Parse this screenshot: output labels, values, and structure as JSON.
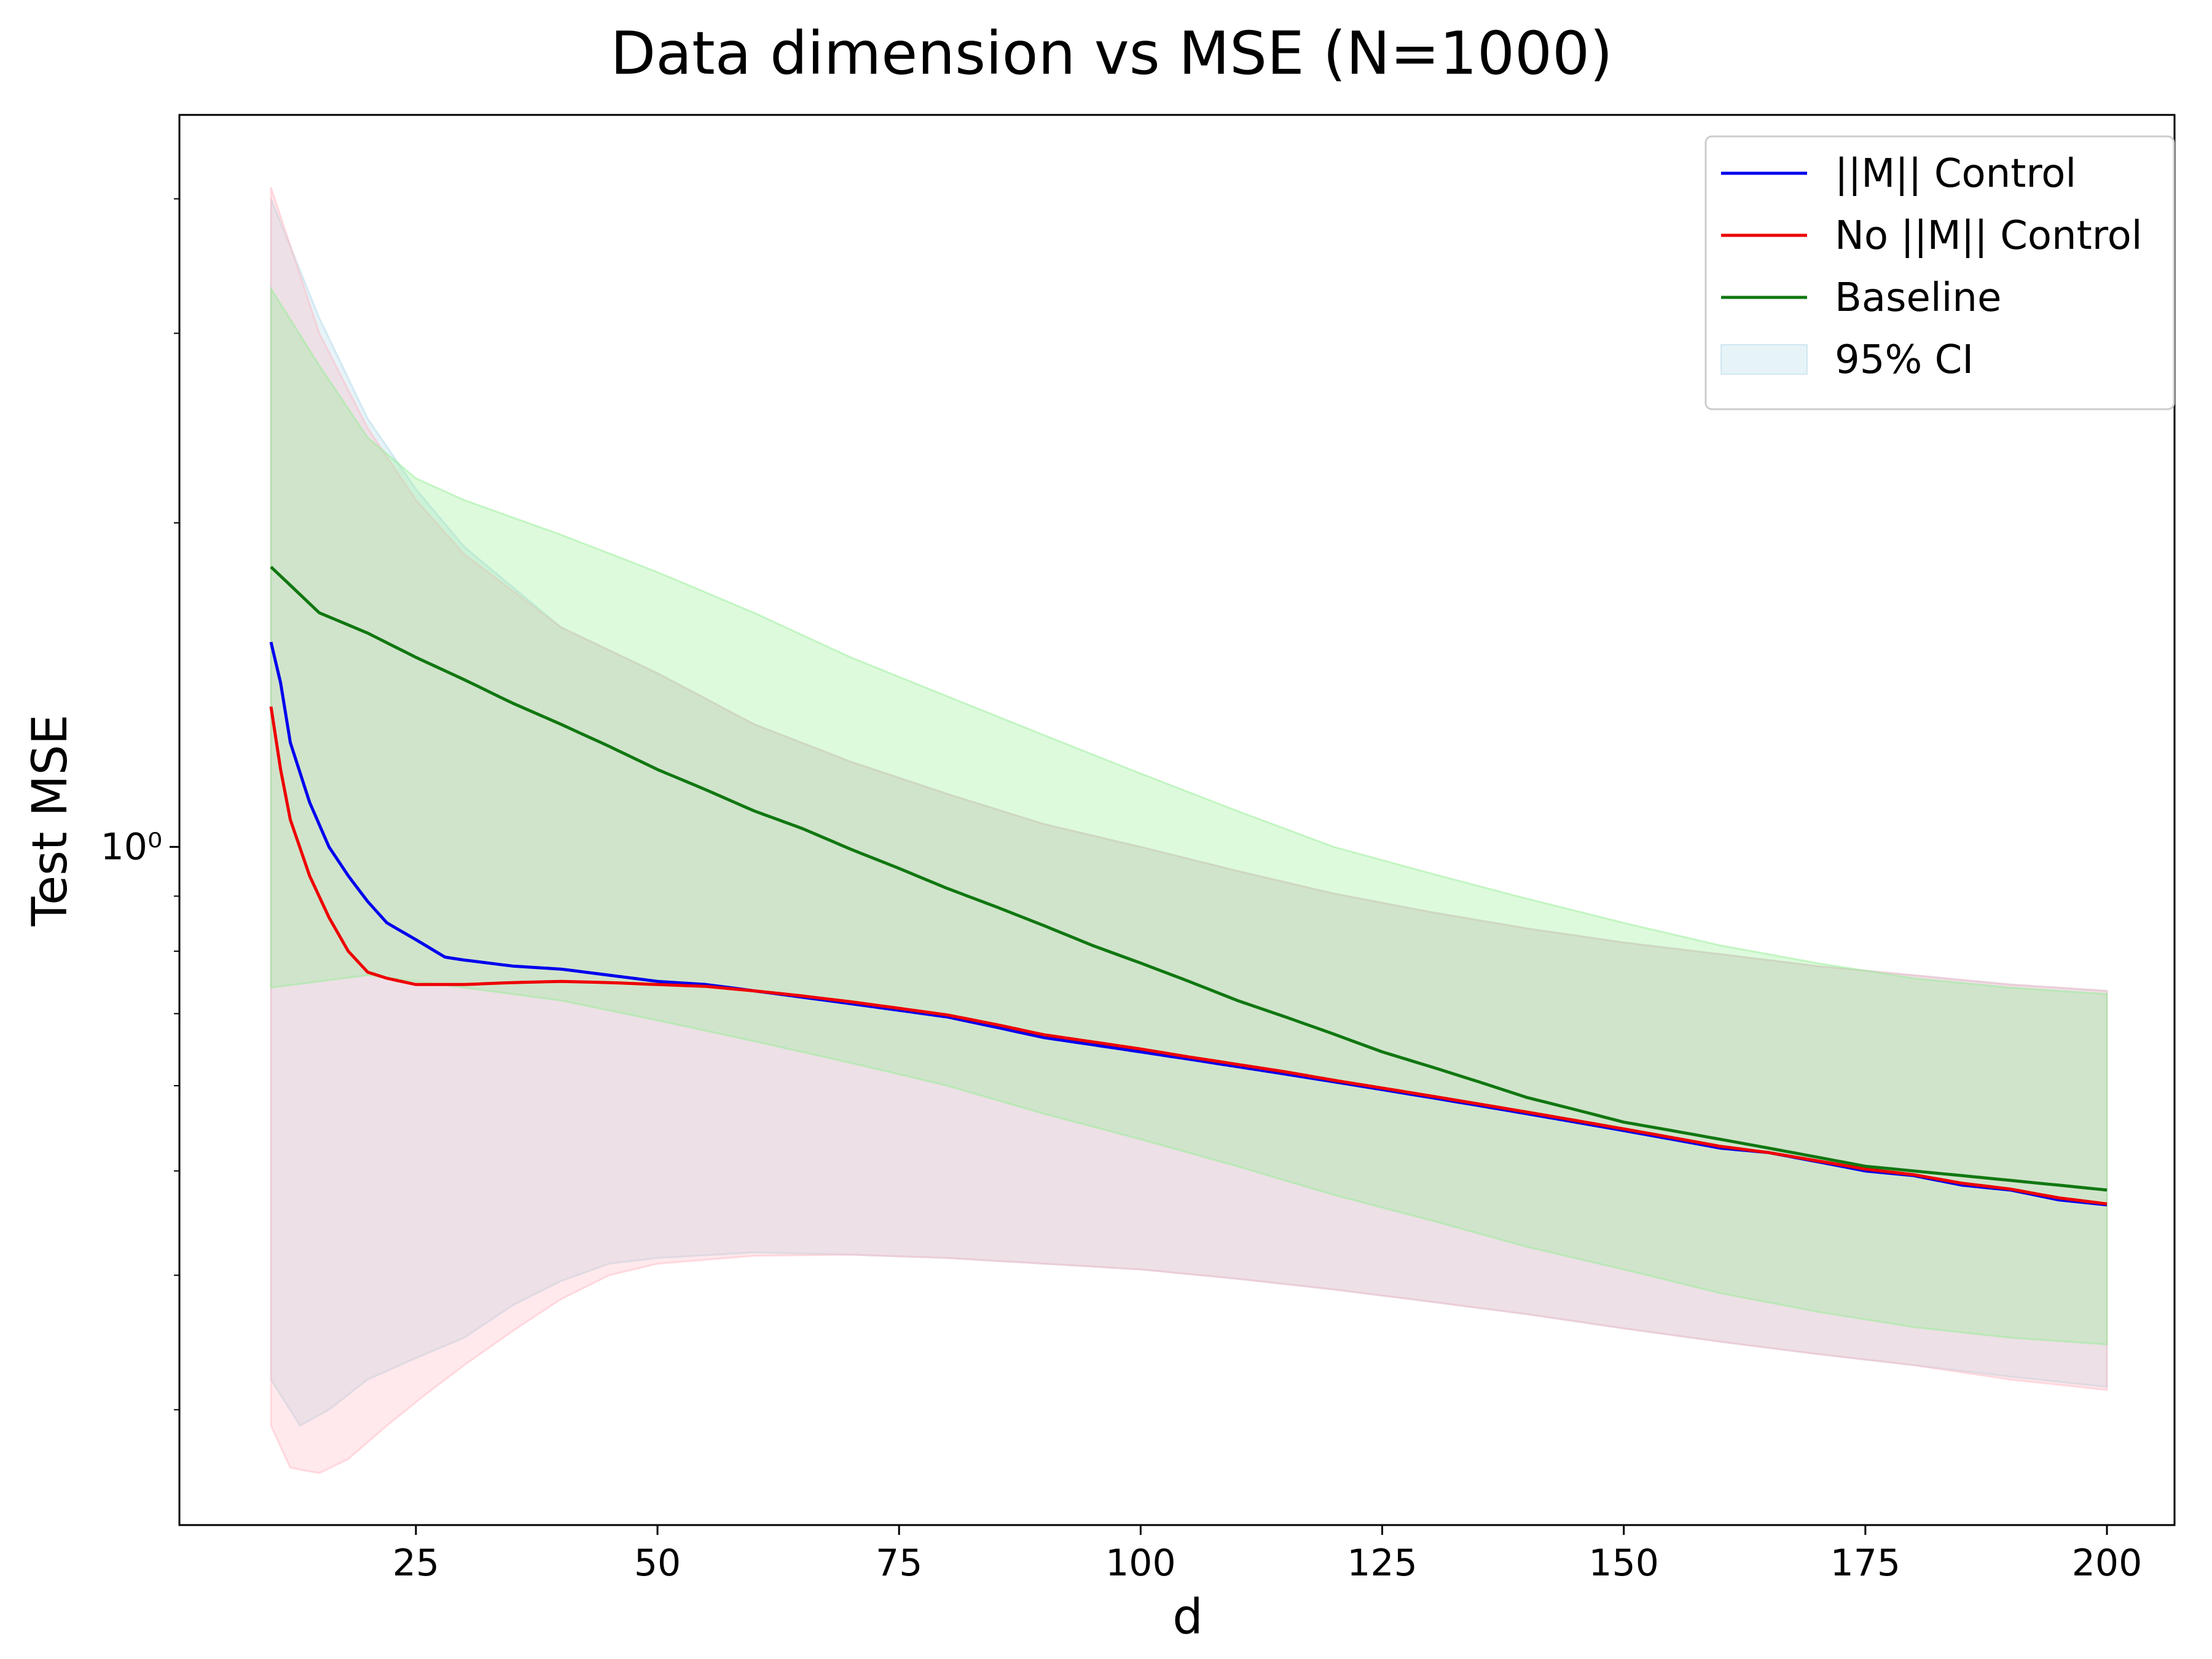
{
  "chart_data": {
    "type": "line",
    "title": "Data dimension vs MSE (N=1000)",
    "xlabel": "d",
    "ylabel": "Test MSE",
    "xlim": [
      0,
      210
    ],
    "ylim_log10": [
      -0.63,
      0.68
    ],
    "yscale": "log",
    "grid": false,
    "legend_position": "top-right",
    "x_ticks": [
      25,
      50,
      75,
      100,
      125,
      150,
      175,
      200
    ],
    "y_major_ticks": [
      {
        "value": 1,
        "label": "10⁰"
      }
    ],
    "y_minor_ticks": [
      0.3,
      0.4,
      0.5,
      0.6,
      0.7,
      0.8,
      0.9,
      2,
      3,
      4
    ],
    "x_range": [
      10,
      200
    ],
    "series": [
      {
        "name": "||M|| Control",
        "color": "#0000ee",
        "points": [
          [
            10,
            1.55
          ],
          [
            11,
            1.42
          ],
          [
            12,
            1.25
          ],
          [
            14,
            1.1
          ],
          [
            16,
            1.0
          ],
          [
            18,
            0.94
          ],
          [
            20,
            0.89
          ],
          [
            22,
            0.85
          ],
          [
            25,
            0.82
          ],
          [
            28,
            0.79
          ],
          [
            30,
            0.785
          ],
          [
            35,
            0.775
          ],
          [
            40,
            0.77
          ],
          [
            45,
            0.76
          ],
          [
            50,
            0.75
          ],
          [
            55,
            0.745
          ],
          [
            60,
            0.735
          ],
          [
            65,
            0.725
          ],
          [
            70,
            0.715
          ],
          [
            75,
            0.705
          ],
          [
            80,
            0.695
          ],
          [
            85,
            0.68
          ],
          [
            90,
            0.665
          ],
          [
            95,
            0.655
          ],
          [
            100,
            0.645
          ],
          [
            105,
            0.635
          ],
          [
            110,
            0.625
          ],
          [
            115,
            0.615
          ],
          [
            120,
            0.605
          ],
          [
            125,
            0.595
          ],
          [
            130,
            0.585
          ],
          [
            135,
            0.575
          ],
          [
            140,
            0.565
          ],
          [
            145,
            0.555
          ],
          [
            150,
            0.545
          ],
          [
            155,
            0.535
          ],
          [
            160,
            0.525
          ],
          [
            165,
            0.52
          ],
          [
            170,
            0.51
          ],
          [
            175,
            0.5
          ],
          [
            180,
            0.495
          ],
          [
            185,
            0.485
          ],
          [
            190,
            0.48
          ],
          [
            195,
            0.47
          ],
          [
            200,
            0.465
          ]
        ]
      },
      {
        "name": "No ||M|| Control",
        "color": "#ee0000",
        "points": [
          [
            10,
            1.35
          ],
          [
            11,
            1.18
          ],
          [
            12,
            1.06
          ],
          [
            14,
            0.94
          ],
          [
            16,
            0.86
          ],
          [
            18,
            0.8
          ],
          [
            20,
            0.765
          ],
          [
            22,
            0.755
          ],
          [
            25,
            0.745
          ],
          [
            28,
            0.745
          ],
          [
            30,
            0.745
          ],
          [
            35,
            0.748
          ],
          [
            40,
            0.75
          ],
          [
            45,
            0.748
          ],
          [
            50,
            0.745
          ],
          [
            55,
            0.742
          ],
          [
            60,
            0.735
          ],
          [
            65,
            0.727
          ],
          [
            70,
            0.718
          ],
          [
            75,
            0.708
          ],
          [
            80,
            0.698
          ],
          [
            85,
            0.684
          ],
          [
            90,
            0.669
          ],
          [
            95,
            0.659
          ],
          [
            100,
            0.649
          ],
          [
            105,
            0.638
          ],
          [
            110,
            0.628
          ],
          [
            115,
            0.618
          ],
          [
            120,
            0.607
          ],
          [
            125,
            0.597
          ],
          [
            130,
            0.587
          ],
          [
            135,
            0.577
          ],
          [
            140,
            0.567
          ],
          [
            145,
            0.557
          ],
          [
            150,
            0.547
          ],
          [
            155,
            0.537
          ],
          [
            160,
            0.527
          ],
          [
            165,
            0.52
          ],
          [
            170,
            0.511
          ],
          [
            175,
            0.502
          ],
          [
            180,
            0.496
          ],
          [
            185,
            0.487
          ],
          [
            190,
            0.481
          ],
          [
            195,
            0.472
          ],
          [
            200,
            0.466
          ]
        ]
      },
      {
        "name": "Baseline",
        "color": "#117711",
        "points": [
          [
            10,
            1.82
          ],
          [
            15,
            1.65
          ],
          [
            20,
            1.58
          ],
          [
            25,
            1.5
          ],
          [
            30,
            1.43
          ],
          [
            35,
            1.36
          ],
          [
            40,
            1.3
          ],
          [
            45,
            1.24
          ],
          [
            50,
            1.18
          ],
          [
            55,
            1.13
          ],
          [
            60,
            1.08
          ],
          [
            65,
            1.04
          ],
          [
            70,
            0.995
          ],
          [
            75,
            0.955
          ],
          [
            80,
            0.915
          ],
          [
            85,
            0.88
          ],
          [
            90,
            0.845
          ],
          [
            95,
            0.81
          ],
          [
            100,
            0.78
          ],
          [
            105,
            0.75
          ],
          [
            110,
            0.72
          ],
          [
            115,
            0.695
          ],
          [
            120,
            0.67
          ],
          [
            125,
            0.645
          ],
          [
            130,
            0.625
          ],
          [
            135,
            0.605
          ],
          [
            140,
            0.585
          ],
          [
            145,
            0.57
          ],
          [
            150,
            0.555
          ],
          [
            155,
            0.545
          ],
          [
            160,
            0.535
          ],
          [
            165,
            0.525
          ],
          [
            170,
            0.515
          ],
          [
            175,
            0.505
          ],
          [
            180,
            0.5
          ],
          [
            185,
            0.495
          ],
          [
            190,
            0.49
          ],
          [
            195,
            0.485
          ],
          [
            200,
            0.48
          ]
        ]
      }
    ],
    "confidence_bands": [
      {
        "name": "95% CI",
        "series": "||M|| Control",
        "color": "#add8e6",
        "opacity": 0.3,
        "upper": [
          [
            10,
            4.0
          ],
          [
            15,
            3.1
          ],
          [
            20,
            2.5
          ],
          [
            25,
            2.15
          ],
          [
            30,
            1.9
          ],
          [
            40,
            1.6
          ],
          [
            50,
            1.45
          ],
          [
            60,
            1.3
          ],
          [
            70,
            1.2
          ],
          [
            80,
            1.12
          ],
          [
            90,
            1.05
          ],
          [
            100,
            1.0
          ],
          [
            110,
            0.95
          ],
          [
            120,
            0.905
          ],
          [
            130,
            0.87
          ],
          [
            140,
            0.84
          ],
          [
            150,
            0.815
          ],
          [
            160,
            0.795
          ],
          [
            170,
            0.775
          ],
          [
            180,
            0.76
          ],
          [
            190,
            0.745
          ],
          [
            200,
            0.735
          ]
        ],
        "lower": [
          [
            10,
            0.32
          ],
          [
            13,
            0.29
          ],
          [
            16,
            0.3
          ],
          [
            20,
            0.32
          ],
          [
            25,
            0.335
          ],
          [
            30,
            0.35
          ],
          [
            35,
            0.375
          ],
          [
            40,
            0.395
          ],
          [
            45,
            0.41
          ],
          [
            50,
            0.415
          ],
          [
            60,
            0.42
          ],
          [
            70,
            0.418
          ],
          [
            80,
            0.415
          ],
          [
            90,
            0.41
          ],
          [
            100,
            0.405
          ],
          [
            110,
            0.397
          ],
          [
            120,
            0.388
          ],
          [
            130,
            0.378
          ],
          [
            140,
            0.368
          ],
          [
            150,
            0.357
          ],
          [
            160,
            0.347
          ],
          [
            170,
            0.338
          ],
          [
            180,
            0.33
          ],
          [
            190,
            0.322
          ],
          [
            200,
            0.315
          ]
        ]
      },
      {
        "name": "95% CI",
        "series": "No ||M|| Control",
        "color": "#ffb6c1",
        "opacity": 0.3,
        "upper": [
          [
            10,
            4.1
          ],
          [
            15,
            3.0
          ],
          [
            20,
            2.45
          ],
          [
            25,
            2.1
          ],
          [
            30,
            1.87
          ],
          [
            40,
            1.6
          ],
          [
            50,
            1.45
          ],
          [
            60,
            1.3
          ],
          [
            70,
            1.2
          ],
          [
            80,
            1.12
          ],
          [
            90,
            1.05
          ],
          [
            100,
            1.0
          ],
          [
            110,
            0.95
          ],
          [
            120,
            0.905
          ],
          [
            130,
            0.87
          ],
          [
            140,
            0.84
          ],
          [
            150,
            0.815
          ],
          [
            160,
            0.795
          ],
          [
            170,
            0.775
          ],
          [
            180,
            0.76
          ],
          [
            190,
            0.745
          ],
          [
            200,
            0.735
          ]
        ],
        "lower": [
          [
            10,
            0.29
          ],
          [
            12,
            0.265
          ],
          [
            15,
            0.262
          ],
          [
            18,
            0.27
          ],
          [
            22,
            0.29
          ],
          [
            26,
            0.31
          ],
          [
            30,
            0.33
          ],
          [
            35,
            0.355
          ],
          [
            40,
            0.38
          ],
          [
            45,
            0.4
          ],
          [
            50,
            0.41
          ],
          [
            60,
            0.417
          ],
          [
            70,
            0.418
          ],
          [
            80,
            0.415
          ],
          [
            90,
            0.41
          ],
          [
            100,
            0.405
          ],
          [
            110,
            0.397
          ],
          [
            120,
            0.388
          ],
          [
            130,
            0.378
          ],
          [
            140,
            0.368
          ],
          [
            150,
            0.357
          ],
          [
            160,
            0.347
          ],
          [
            170,
            0.338
          ],
          [
            180,
            0.33
          ],
          [
            190,
            0.32
          ],
          [
            200,
            0.313
          ]
        ]
      },
      {
        "name": "95% CI",
        "series": "Baseline",
        "color": "#90ee90",
        "opacity": 0.3,
        "upper": [
          [
            10,
            3.3
          ],
          [
            15,
            2.8
          ],
          [
            20,
            2.4
          ],
          [
            25,
            2.2
          ],
          [
            30,
            2.1
          ],
          [
            40,
            1.95
          ],
          [
            50,
            1.8
          ],
          [
            60,
            1.65
          ],
          [
            70,
            1.5
          ],
          [
            80,
            1.38
          ],
          [
            90,
            1.27
          ],
          [
            100,
            1.17
          ],
          [
            110,
            1.08
          ],
          [
            120,
            1.0
          ],
          [
            130,
            0.945
          ],
          [
            140,
            0.895
          ],
          [
            150,
            0.85
          ],
          [
            160,
            0.81
          ],
          [
            170,
            0.78
          ],
          [
            180,
            0.755
          ],
          [
            190,
            0.74
          ],
          [
            200,
            0.73
          ]
        ],
        "lower": [
          [
            10,
            0.74
          ],
          [
            15,
            0.75
          ],
          [
            20,
            0.76
          ],
          [
            25,
            0.75
          ],
          [
            30,
            0.74
          ],
          [
            40,
            0.72
          ],
          [
            50,
            0.69
          ],
          [
            60,
            0.66
          ],
          [
            70,
            0.63
          ],
          [
            80,
            0.6
          ],
          [
            90,
            0.565
          ],
          [
            100,
            0.535
          ],
          [
            110,
            0.505
          ],
          [
            120,
            0.475
          ],
          [
            130,
            0.45
          ],
          [
            140,
            0.425
          ],
          [
            150,
            0.405
          ],
          [
            160,
            0.385
          ],
          [
            170,
            0.37
          ],
          [
            180,
            0.358
          ],
          [
            190,
            0.35
          ],
          [
            200,
            0.345
          ]
        ]
      }
    ],
    "legend": [
      {
        "label": "||M|| Control",
        "kind": "line",
        "color": "#0000ee"
      },
      {
        "label": "No ||M|| Control",
        "kind": "line",
        "color": "#ee0000"
      },
      {
        "label": "Baseline",
        "kind": "line",
        "color": "#117711"
      },
      {
        "label": "95% CI",
        "kind": "patch",
        "color": "#add8e6"
      }
    ]
  }
}
